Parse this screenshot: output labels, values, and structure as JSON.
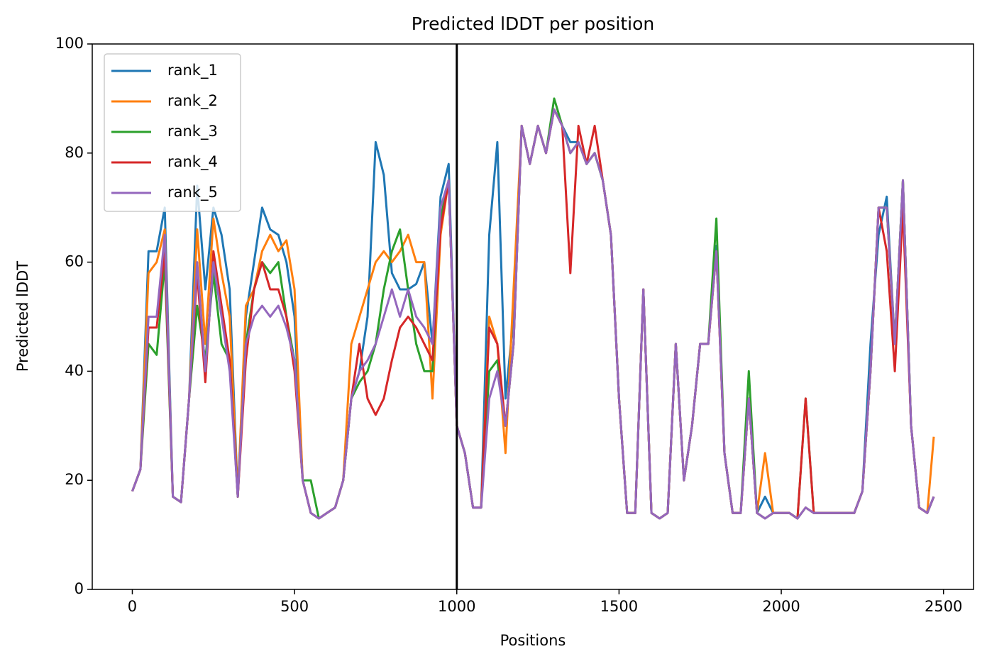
{
  "chart_data": {
    "type": "line",
    "title": "Predicted lDDT per position",
    "x_label": "Positions",
    "y_label": "Predicted lDDT",
    "x": [
      0,
      25,
      50,
      75,
      100,
      125,
      150,
      175,
      200,
      225,
      250,
      275,
      300,
      325,
      350,
      375,
      400,
      425,
      450,
      475,
      500,
      525,
      550,
      575,
      600,
      625,
      650,
      675,
      700,
      725,
      750,
      775,
      800,
      825,
      850,
      875,
      900,
      925,
      950,
      975,
      1000,
      1025,
      1050,
      1075,
      1100,
      1125,
      1150,
      1175,
      1200,
      1225,
      1250,
      1275,
      1300,
      1325,
      1350,
      1375,
      1400,
      1425,
      1450,
      1475,
      1500,
      1525,
      1550,
      1575,
      1600,
      1625,
      1650,
      1675,
      1700,
      1725,
      1750,
      1775,
      1800,
      1825,
      1850,
      1875,
      1900,
      1925,
      1950,
      1975,
      2000,
      2025,
      2050,
      2075,
      2100,
      2125,
      2150,
      2175,
      2200,
      2225,
      2250,
      2275,
      2300,
      2325,
      2350,
      2375,
      2400,
      2425,
      2450,
      2470
    ],
    "series": [
      {
        "name": "rank_1",
        "color": "#1f77b4",
        "values": [
          18,
          22,
          62,
          62,
          70,
          17,
          16,
          35,
          74,
          55,
          70,
          65,
          55,
          17,
          50,
          60,
          70,
          66,
          65,
          60,
          50,
          20,
          14,
          13,
          14,
          15,
          20,
          35,
          40,
          50,
          82,
          76,
          58,
          55,
          55,
          56,
          60,
          45,
          72,
          78,
          30,
          25,
          15,
          15,
          65,
          82,
          35,
          50,
          85,
          78,
          85,
          80,
          88,
          85,
          82,
          82,
          78,
          80,
          75,
          65,
          35,
          14,
          14,
          55,
          14,
          13,
          14,
          45,
          20,
          30,
          45,
          45,
          63,
          25,
          14,
          14,
          35,
          14,
          17,
          14,
          14,
          14,
          13,
          15,
          14,
          14,
          14,
          14,
          14,
          14,
          18,
          45,
          65,
          72,
          45,
          75,
          30,
          15,
          14,
          17
        ]
      },
      {
        "name": "rank_2",
        "color": "#ff7f0e",
        "values": [
          18,
          22,
          58,
          60,
          66,
          17,
          16,
          35,
          66,
          45,
          68,
          58,
          50,
          17,
          52,
          55,
          62,
          65,
          62,
          64,
          55,
          20,
          14,
          13,
          14,
          15,
          20,
          45,
          50,
          55,
          60,
          62,
          60,
          62,
          65,
          60,
          60,
          35,
          65,
          75,
          30,
          25,
          15,
          15,
          50,
          45,
          25,
          55,
          85,
          78,
          85,
          80,
          88,
          85,
          80,
          82,
          78,
          80,
          75,
          65,
          35,
          14,
          14,
          55,
          14,
          13,
          14,
          45,
          20,
          30,
          45,
          45,
          62,
          25,
          14,
          14,
          35,
          14,
          25,
          14,
          14,
          14,
          13,
          15,
          14,
          14,
          14,
          14,
          14,
          14,
          18,
          40,
          70,
          70,
          45,
          75,
          30,
          15,
          14,
          28
        ]
      },
      {
        "name": "rank_3",
        "color": "#2ca02c",
        "values": [
          18,
          22,
          45,
          43,
          60,
          17,
          16,
          35,
          52,
          42,
          58,
          45,
          42,
          17,
          45,
          55,
          60,
          58,
          60,
          50,
          42,
          20,
          20,
          13,
          14,
          15,
          20,
          35,
          38,
          40,
          45,
          55,
          62,
          66,
          55,
          45,
          40,
          40,
          68,
          75,
          30,
          25,
          15,
          15,
          40,
          42,
          30,
          45,
          85,
          78,
          85,
          80,
          90,
          85,
          80,
          82,
          78,
          80,
          75,
          65,
          35,
          14,
          14,
          55,
          14,
          13,
          14,
          45,
          20,
          30,
          45,
          45,
          68,
          25,
          14,
          14,
          40,
          14,
          13,
          14,
          14,
          14,
          13,
          35,
          14,
          14,
          14,
          14,
          14,
          14,
          18,
          40,
          70,
          70,
          45,
          75,
          30,
          15,
          14,
          17
        ]
      },
      {
        "name": "rank_4",
        "color": "#d62728",
        "values": [
          18,
          22,
          48,
          48,
          62,
          17,
          16,
          35,
          58,
          38,
          62,
          52,
          42,
          17,
          42,
          55,
          60,
          55,
          55,
          50,
          40,
          20,
          14,
          13,
          14,
          15,
          20,
          35,
          45,
          35,
          32,
          35,
          42,
          48,
          50,
          48,
          45,
          42,
          66,
          75,
          30,
          25,
          15,
          15,
          48,
          45,
          30,
          45,
          85,
          78,
          85,
          80,
          88,
          85,
          58,
          85,
          78,
          85,
          75,
          65,
          35,
          14,
          14,
          55,
          14,
          13,
          14,
          45,
          20,
          30,
          45,
          45,
          62,
          25,
          14,
          14,
          35,
          14,
          13,
          14,
          14,
          14,
          13,
          35,
          14,
          14,
          14,
          14,
          14,
          14,
          18,
          40,
          70,
          62,
          40,
          70,
          30,
          15,
          14,
          17
        ]
      },
      {
        "name": "rank_5",
        "color": "#9467bd",
        "values": [
          18,
          22,
          50,
          50,
          65,
          17,
          16,
          35,
          60,
          40,
          60,
          50,
          40,
          17,
          45,
          50,
          52,
          50,
          52,
          48,
          42,
          20,
          14,
          13,
          14,
          15,
          20,
          35,
          40,
          42,
          45,
          50,
          55,
          50,
          55,
          50,
          48,
          45,
          70,
          75,
          30,
          25,
          15,
          15,
          35,
          40,
          30,
          45,
          85,
          78,
          85,
          80,
          88,
          85,
          80,
          82,
          78,
          80,
          75,
          65,
          35,
          14,
          14,
          55,
          14,
          13,
          14,
          45,
          20,
          30,
          45,
          45,
          62,
          25,
          14,
          14,
          35,
          14,
          13,
          14,
          14,
          14,
          13,
          15,
          14,
          14,
          14,
          14,
          14,
          14,
          18,
          40,
          70,
          70,
          45,
          75,
          30,
          15,
          14,
          17
        ]
      }
    ],
    "vlines": [
      1000
    ],
    "vline_color": "#000000",
    "xlim": [
      -123.5,
      2592.5
    ],
    "xticks": [
      0,
      500,
      1000,
      1500,
      2000,
      2500
    ],
    "ylim": [
      0,
      100
    ],
    "yticks": [
      0,
      20,
      40,
      60,
      80,
      100
    ],
    "grid": false,
    "legend": "upper left"
  }
}
